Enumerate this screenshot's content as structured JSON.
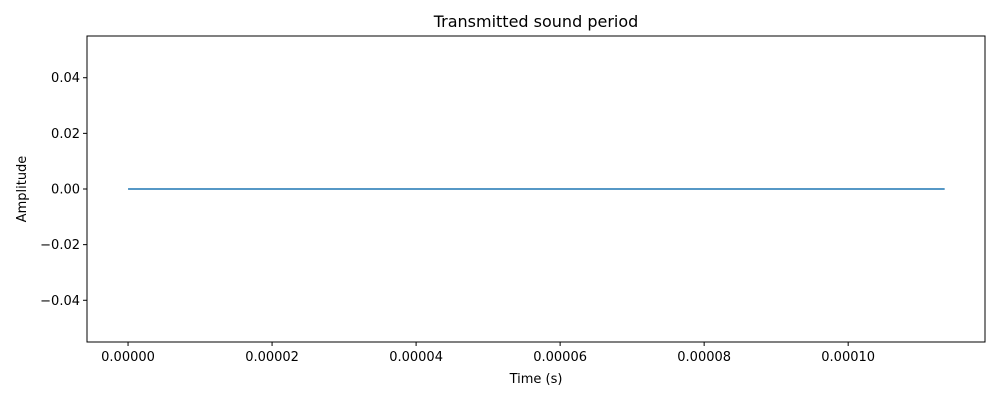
{
  "chart_data": {
    "type": "line",
    "title": "Transmitted sound period",
    "xlabel": "Time (s)",
    "ylabel": "Amplitude",
    "xlim": [
      -5.7e-06,
      0.000119
    ],
    "ylim": [
      -0.055,
      0.055
    ],
    "x_ticks": [
      0.0,
      2e-05,
      4e-05,
      6e-05,
      8e-05,
      0.0001
    ],
    "x_tick_labels": [
      "0.00000",
      "0.00002",
      "0.00004",
      "0.00006",
      "0.00008",
      "0.00010"
    ],
    "y_ticks": [
      -0.04,
      -0.02,
      0.0,
      0.02,
      0.04
    ],
    "y_tick_labels": [
      "−0.04",
      "−0.02",
      "0.00",
      "0.02",
      "0.04"
    ],
    "grid": false,
    "series": [
      {
        "color": "#1f77b4",
        "x": [
          0.0,
          0.0001134
        ],
        "y": [
          0.0,
          0.0
        ]
      }
    ]
  }
}
